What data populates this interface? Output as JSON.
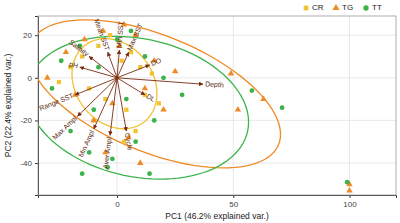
{
  "chart_data": {
    "type": "scatter",
    "x_label": "PC1 (46.2% explained var.)",
    "y_label": "PC2 (22.4% explained var.)",
    "xlim": [
      -34,
      120
    ],
    "ylim": [
      -55,
      29
    ],
    "xticks": [
      0,
      50,
      100
    ],
    "yticks": [
      -40,
      -20,
      0,
      20
    ],
    "grid": true,
    "legend": "top-right",
    "series": [
      {
        "name": "CR",
        "color": "#f2c230",
        "marker": "square",
        "x": [
          -20,
          -15,
          -12,
          -8,
          -5,
          -3,
          0,
          2,
          4,
          6,
          8,
          10,
          12,
          15,
          -25,
          -10,
          3,
          18
        ],
        "values": [
          5,
          10,
          -5,
          15,
          -10,
          20,
          0,
          8,
          -15,
          12,
          -25,
          5,
          -8,
          2,
          -2,
          -20,
          -30,
          -12
        ]
      },
      {
        "name": "TG",
        "color": "#f08a24",
        "marker": "triangle",
        "x": [
          -30,
          -22,
          -18,
          -14,
          -10,
          -6,
          -2,
          1,
          5,
          8,
          12,
          16,
          20,
          25,
          49,
          63,
          52,
          100,
          100,
          -5,
          3,
          10
        ],
        "values": [
          0,
          12,
          -8,
          18,
          -20,
          22,
          -12,
          15,
          -28,
          20,
          -5,
          8,
          -15,
          3,
          2,
          -10,
          -15,
          -50,
          -53,
          -35,
          25,
          -40
        ]
      },
      {
        "name": "TT",
        "color": "#3cb34a",
        "marker": "circle",
        "x": [
          -28,
          -24,
          -20,
          -16,
          -12,
          -8,
          -4,
          0,
          4,
          8,
          12,
          16,
          20,
          28,
          58,
          71,
          99,
          -15,
          -2,
          6,
          14,
          -10
        ],
        "values": [
          -5,
          8,
          -25,
          15,
          -35,
          5,
          -42,
          18,
          -10,
          -30,
          10,
          -20,
          0,
          -8,
          -6,
          -14,
          -49,
          -45,
          -38,
          22,
          -45,
          -15
        ]
      }
    ],
    "loadings": {
      "labels": [
        "Depth",
        "DO",
        "DL",
        "Max SST",
        "Min SST",
        "Mean SST",
        "Salinity",
        "pH",
        "Range SST",
        "Max Ampl",
        "Min Ampl",
        "Aver Ampl",
        "Cycle"
      ],
      "x": [
        37,
        14,
        12,
        5,
        1,
        -4,
        -12,
        -16,
        -18,
        -17,
        -10,
        -3,
        4
      ],
      "y": [
        -3,
        6,
        -8,
        12,
        13,
        12,
        10,
        5,
        -8,
        -18,
        -24,
        -27,
        -25
      ]
    }
  }
}
